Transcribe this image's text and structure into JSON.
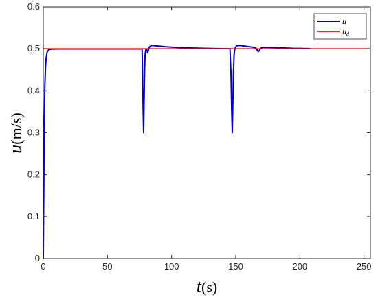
{
  "chart_data": {
    "type": "line",
    "xlabel": {
      "var": "t",
      "unit": "(s)"
    },
    "ylabel": {
      "var": "u",
      "unit": "(m/s)"
    },
    "xlim": [
      0,
      255
    ],
    "ylim": [
      0,
      0.6
    ],
    "xticks": [
      "0",
      "50",
      "100",
      "150",
      "200",
      "250"
    ],
    "xtick_values": [
      0,
      50,
      100,
      150,
      200,
      250
    ],
    "yticks": [
      "0",
      "0.1",
      "0.2",
      "0.3",
      "0.4",
      "0.5",
      "0.6"
    ],
    "ytick_values": [
      0,
      0.1,
      0.2,
      0.3,
      0.4,
      0.5,
      0.6
    ],
    "grid": false,
    "legend_position": "top-right",
    "series": [
      {
        "name": "u",
        "color": "#0000cc",
        "points": [
          [
            0,
            0.0
          ],
          [
            0.4,
            0.17
          ],
          [
            0.8,
            0.33
          ],
          [
            1.2,
            0.41
          ],
          [
            1.7,
            0.455
          ],
          [
            2.3,
            0.48
          ],
          [
            3.0,
            0.492
          ],
          [
            4.0,
            0.497
          ],
          [
            6.0,
            0.499
          ],
          [
            12,
            0.4995
          ],
          [
            77,
            0.4995
          ],
          [
            77.4,
            0.44
          ],
          [
            77.8,
            0.36
          ],
          [
            78.2,
            0.3
          ],
          [
            78.5,
            0.36
          ],
          [
            78.9,
            0.44
          ],
          [
            79.3,
            0.485
          ],
          [
            79.8,
            0.497
          ],
          [
            80.5,
            0.5
          ],
          [
            81.3,
            0.49
          ],
          [
            82.0,
            0.497
          ],
          [
            82.8,
            0.505
          ],
          [
            84.5,
            0.508
          ],
          [
            88,
            0.507
          ],
          [
            95,
            0.505
          ],
          [
            105,
            0.503
          ],
          [
            120,
            0.5015
          ],
          [
            135,
            0.5005
          ],
          [
            145.5,
            0.5
          ],
          [
            146.3,
            0.44
          ],
          [
            146.8,
            0.36
          ],
          [
            147.3,
            0.3
          ],
          [
            147.7,
            0.36
          ],
          [
            148.2,
            0.44
          ],
          [
            148.7,
            0.485
          ],
          [
            149.3,
            0.5
          ],
          [
            150.5,
            0.507
          ],
          [
            153,
            0.508
          ],
          [
            158,
            0.506
          ],
          [
            163,
            0.504
          ],
          [
            165.5,
            0.5025
          ],
          [
            166.8,
            0.496
          ],
          [
            167.6,
            0.493
          ],
          [
            168.6,
            0.497
          ],
          [
            170,
            0.503
          ],
          [
            173,
            0.5035
          ],
          [
            180,
            0.503
          ],
          [
            195,
            0.501
          ],
          [
            208,
            0.5005
          ]
        ]
      },
      {
        "name": "u_d",
        "color": "#ff0000",
        "points": [
          [
            0,
            0.5
          ],
          [
            255,
            0.5
          ]
        ]
      }
    ],
    "legend": [
      {
        "base": "u",
        "sub": "",
        "color": "#0000cc"
      },
      {
        "base": "u",
        "sub": "d",
        "color": "#ff0000"
      }
    ]
  }
}
